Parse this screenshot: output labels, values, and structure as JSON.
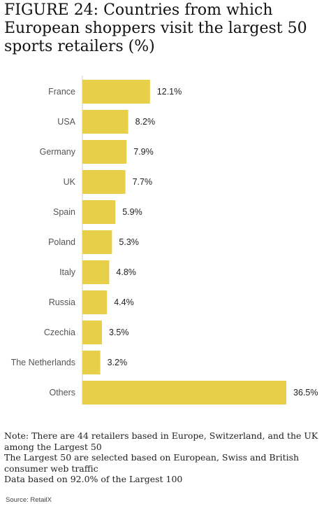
{
  "chart_data": {
    "type": "bar",
    "orientation": "horizontal",
    "title": "FIGURE 24: Countries from which European shoppers visit the largest 50 sports retailers (%)",
    "categories": [
      "France",
      "USA",
      "Germany",
      "UK",
      "Spain",
      "Poland",
      "Italy",
      "Russia",
      "Czechia",
      "The Netherlands",
      "Others"
    ],
    "values": [
      12.1,
      8.2,
      7.9,
      7.7,
      5.9,
      5.3,
      4.8,
      4.4,
      3.5,
      3.2,
      36.5
    ],
    "value_labels": [
      "12.1%",
      "8.2%",
      "7.9%",
      "7.7%",
      "5.9%",
      "5.3%",
      "4.8%",
      "4.4%",
      "3.5%",
      "3.2%",
      "36.5%"
    ],
    "xlim": [
      0,
      36.5
    ],
    "bar_color": "#e8cf4a",
    "grid": false
  },
  "notes": [
    "Note: There are 44 retailers based in Europe, Switzerland, and the UK among the Largest 50",
    "The Largest 50 are selected based on European, Swiss and British consumer web traffic",
    "Data based on 92.0% of the Largest 100"
  ],
  "source": "Source: RetailX"
}
